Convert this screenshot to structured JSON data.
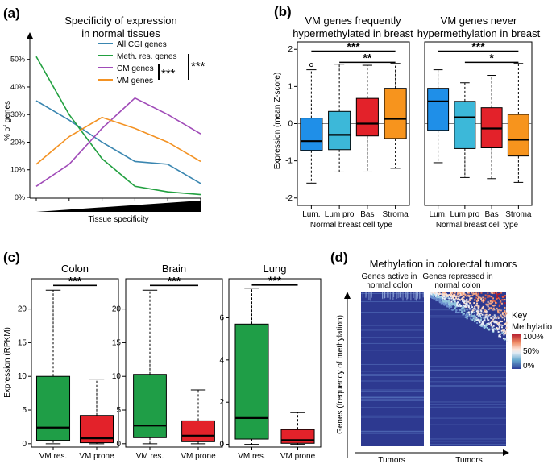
{
  "panels": {
    "a": {
      "label": "(a)"
    },
    "b": {
      "label": "(b)"
    },
    "c": {
      "label": "(c)"
    },
    "d": {
      "label": "(d)"
    }
  },
  "colors": {
    "all_cgi": "#3a86b0",
    "meth_res": "#22a040",
    "cm": "#a04bb8",
    "vm": "#f39223",
    "lum": "#1f8fe8",
    "lumpro": "#3cb8d9",
    "bas": "#e3222a",
    "stroma": "#f7941d",
    "vm_res": "#1f9e47",
    "vm_prone": "#e3222a"
  },
  "chart_data": [
    {
      "id": "a",
      "type": "line",
      "title": "Specificity of expression in normal tissues",
      "title_lines": [
        "Specificity of expression",
        "in normal tissues"
      ],
      "xlabel": "Tissue specificity",
      "ylabel": "% of genes",
      "x": [
        0,
        1,
        2,
        3,
        4,
        5
      ],
      "ylim": [
        0,
        54
      ],
      "yticks": [
        0,
        10,
        20,
        30,
        40,
        50
      ],
      "ytick_labels": [
        "0%",
        "10%",
        "20%",
        "30%",
        "40%",
        "50%"
      ],
      "series": [
        {
          "name": "All CGI genes",
          "color_key": "all_cgi",
          "values": [
            35,
            28,
            20,
            13,
            12,
            5
          ]
        },
        {
          "name": "Meth. res. genes",
          "color_key": "meth_res",
          "values": [
            51,
            30,
            14,
            4,
            2,
            1
          ]
        },
        {
          "name": "CM genes",
          "color_key": "cm",
          "values": [
            4,
            12,
            25,
            36,
            30,
            23
          ]
        },
        {
          "name": "VM genes",
          "color_key": "vm",
          "values": [
            12,
            22,
            29,
            25,
            20,
            13
          ]
        }
      ],
      "annotations": [
        "***",
        "***"
      ]
    },
    {
      "id": "b1",
      "type": "box",
      "title": "VM genes frequently hypermethylated in breast",
      "title_lines": [
        "VM genes frequently",
        "hypermethylated in breast"
      ],
      "ylabel": "Expression (mean Z-score)",
      "xlabel": "Normal breast cell type",
      "ylim": [
        -2.2,
        2.2
      ],
      "yticks": [
        -2,
        -1,
        0,
        1,
        2
      ],
      "categories": [
        "Lum.",
        "Lum pro",
        "Bas",
        "Stroma"
      ],
      "color_keys": [
        "lum",
        "lumpro",
        "bas",
        "stroma"
      ],
      "boxes": [
        {
          "q1": -0.72,
          "median": -0.47,
          "q3": 0.15,
          "wlo": -1.6,
          "whi": 1.45,
          "outliers": [
            1.58
          ]
        },
        {
          "q1": -0.7,
          "median": -0.3,
          "q3": 0.33,
          "wlo": -1.3,
          "whi": 1.6,
          "outliers": []
        },
        {
          "q1": -0.33,
          "median": 0.0,
          "q3": 0.68,
          "wlo": -1.3,
          "whi": 1.57,
          "outliers": []
        },
        {
          "q1": -0.4,
          "median": 0.13,
          "q3": 0.95,
          "wlo": -1.2,
          "whi": 1.62,
          "outliers": []
        }
      ],
      "significance": [
        {
          "from": 0,
          "to": 3,
          "label": "***",
          "y": 1.95
        },
        {
          "from": 1,
          "to": 3,
          "label": "**",
          "y": 1.65
        }
      ]
    },
    {
      "id": "b2",
      "type": "box",
      "title": "VM genes never hypermethylation in breast",
      "title_lines": [
        "VM genes never",
        "hypermethylation in breast"
      ],
      "xlabel": "Normal breast cell type",
      "ylim": [
        -2.2,
        2.2
      ],
      "categories": [
        "Lum.",
        "Lum pro",
        "Bas",
        "Stroma"
      ],
      "color_keys": [
        "lum",
        "lumpro",
        "bas",
        "stroma"
      ],
      "boxes": [
        {
          "q1": -0.18,
          "median": 0.6,
          "q3": 0.95,
          "wlo": -1.05,
          "whi": 1.45,
          "outliers": []
        },
        {
          "q1": -0.67,
          "median": 0.17,
          "q3": 0.6,
          "wlo": -1.45,
          "whi": 1.1,
          "outliers": []
        },
        {
          "q1": -0.65,
          "median": -0.13,
          "q3": 0.43,
          "wlo": -1.48,
          "whi": 1.3,
          "outliers": []
        },
        {
          "q1": -0.87,
          "median": -0.43,
          "q3": 0.25,
          "wlo": -1.58,
          "whi": 1.62,
          "outliers": []
        }
      ],
      "significance": [
        {
          "from": 0,
          "to": 3,
          "label": "***",
          "y": 1.95
        },
        {
          "from": 1,
          "to": 3,
          "label": "*",
          "y": 1.65
        }
      ]
    },
    {
      "id": "c1",
      "type": "box",
      "title": "Colon",
      "ylabel": "Expression (RPKM)",
      "ylim": [
        -0.5,
        24.5
      ],
      "yticks": [
        0,
        5,
        10,
        15,
        20
      ],
      "categories": [
        "VM res.",
        "VM prone"
      ],
      "color_keys": [
        "vm_res",
        "vm_prone"
      ],
      "boxes": [
        {
          "q1": 0.5,
          "median": 2.4,
          "q3": 10.0,
          "wlo": 0.0,
          "whi": 22.8,
          "outliers": []
        },
        {
          "q1": 0.15,
          "median": 0.8,
          "q3": 4.2,
          "wlo": 0.0,
          "whi": 9.6,
          "outliers": []
        }
      ],
      "significance": [
        {
          "from": 0,
          "to": 1,
          "label": "***",
          "y": 23.5
        }
      ]
    },
    {
      "id": "c2",
      "type": "box",
      "title": "Brain",
      "ylim": [
        -0.5,
        24.5
      ],
      "yticks": [
        0,
        5,
        10,
        15,
        20
      ],
      "categories": [
        "VM res.",
        "VM prone"
      ],
      "color_keys": [
        "vm_res",
        "vm_prone"
      ],
      "boxes": [
        {
          "q1": 0.9,
          "median": 2.7,
          "q3": 10.3,
          "wlo": 0.0,
          "whi": 22.8,
          "outliers": []
        },
        {
          "q1": 0.3,
          "median": 1.2,
          "q3": 3.4,
          "wlo": 0.0,
          "whi": 8.0,
          "outliers": []
        }
      ],
      "significance": [
        {
          "from": 0,
          "to": 1,
          "label": "***",
          "y": 23.5
        }
      ]
    },
    {
      "id": "c3",
      "type": "box",
      "title": "Lung",
      "ylim": [
        -0.13,
        7.85
      ],
      "yticks": [
        0,
        2,
        4,
        6
      ],
      "categories": [
        "VM res.",
        "VM prone"
      ],
      "color_keys": [
        "vm_res",
        "vm_prone"
      ],
      "boxes": [
        {
          "q1": 0.25,
          "median": 1.25,
          "q3": 5.7,
          "wlo": 0.0,
          "whi": 7.4,
          "outliers": []
        },
        {
          "q1": 0.05,
          "median": 0.2,
          "q3": 0.7,
          "wlo": 0.0,
          "whi": 1.5,
          "outliers": []
        }
      ],
      "significance": [
        {
          "from": 0,
          "to": 1,
          "label": "***",
          "y": 7.55
        }
      ]
    },
    {
      "id": "d",
      "type": "heatmap",
      "title": "Methylation in colorectal tumors",
      "columns": [
        {
          "title_lines": [
            "Genes active in",
            "normal colon"
          ]
        },
        {
          "title_lines": [
            "Genes repressed in",
            "normal colon"
          ]
        }
      ],
      "ylabel": "Genes (frequency of methylation)",
      "xlabel": "Tumors",
      "legend": {
        "title_lines": [
          "Key",
          "Methylation:"
        ],
        "ticks": [
          "100%",
          "50%",
          "0%"
        ],
        "colors": [
          "#b2182b",
          "#ef8a62",
          "#fddbc7",
          "#f7f7f7",
          "#d1e5f0",
          "#67a9cf",
          "#2c3e99"
        ]
      }
    }
  ]
}
